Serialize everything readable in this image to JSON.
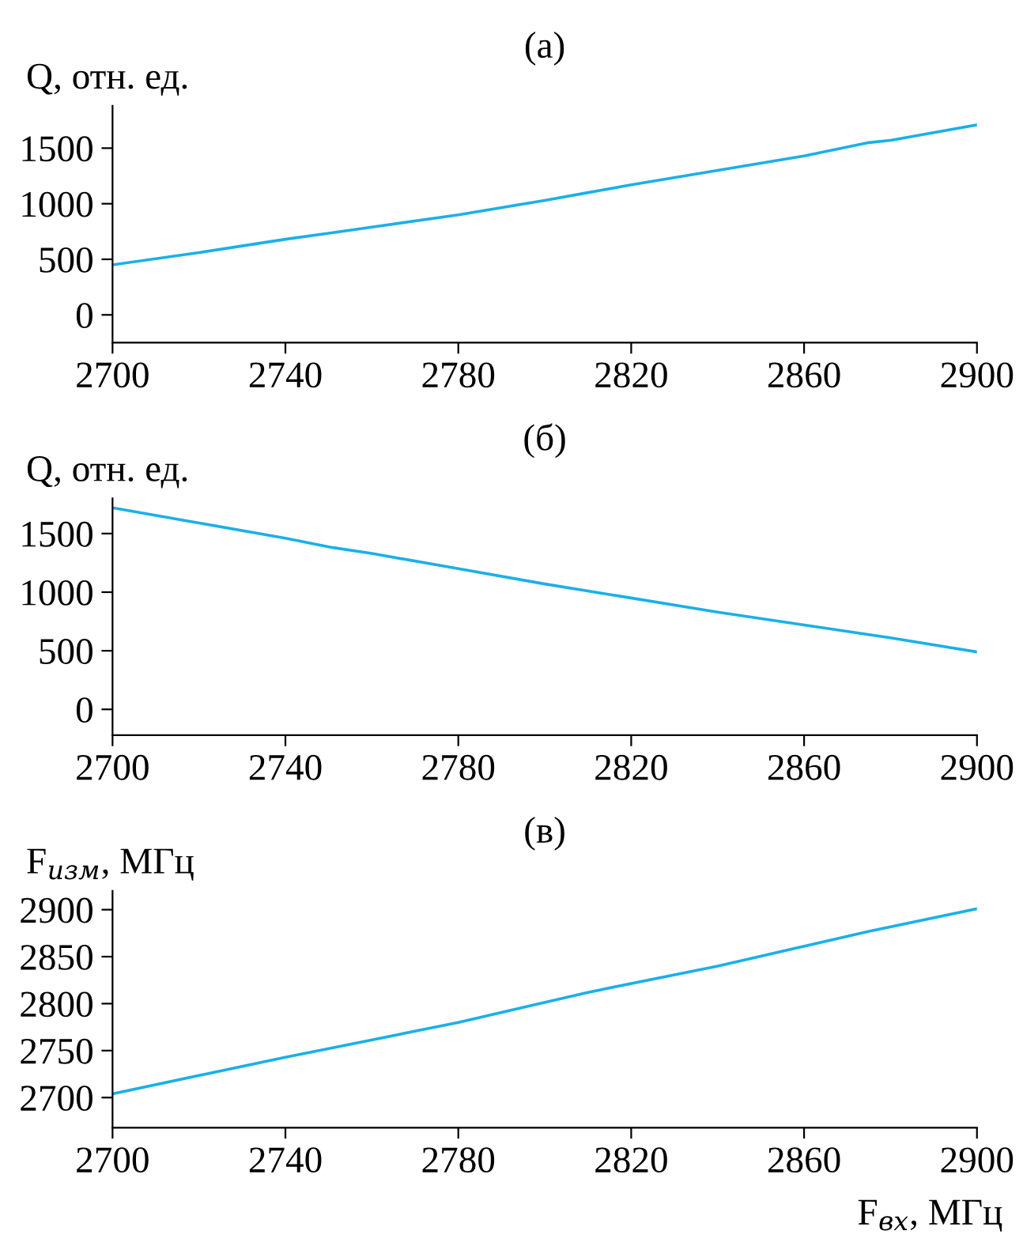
{
  "chart_data": [
    {
      "type": "line",
      "title": "(а)",
      "ylabel": "Q, отн. ед.",
      "x": [
        2700,
        2720,
        2740,
        2751,
        2760,
        2780,
        2800,
        2810,
        2820,
        2840,
        2860,
        2875,
        2880,
        2900
      ],
      "series": [
        {
          "color": "#1ab0e8",
          "values": [
            450,
            560,
            680,
            740,
            790,
            900,
            1030,
            1100,
            1170,
            1300,
            1430,
            1550,
            1570,
            1710
          ]
        }
      ],
      "xlim": [
        2700,
        2900
      ],
      "xticks": [
        2700,
        2740,
        2780,
        2820,
        2860,
        2900
      ],
      "ylim": [
        -250,
        1880
      ],
      "yticks": [
        0,
        500,
        1000,
        1500
      ],
      "grid": false,
      "legend": false
    },
    {
      "type": "line",
      "title": "(б)",
      "ylabel": "Q, отн. ед.",
      "x": [
        2700,
        2720,
        2740,
        2751,
        2760,
        2780,
        2800,
        2810,
        2820,
        2840,
        2860,
        2880,
        2900
      ],
      "series": [
        {
          "color": "#1ab0e8",
          "values": [
            1720,
            1590,
            1460,
            1380,
            1330,
            1200,
            1070,
            1010,
            950,
            830,
            720,
            610,
            490
          ]
        }
      ],
      "xlim": [
        2700,
        2900
      ],
      "xticks": [
        2700,
        2740,
        2780,
        2820,
        2860,
        2900
      ],
      "ylim": [
        -220,
        1800
      ],
      "yticks": [
        0,
        500,
        1000,
        1500
      ],
      "grid": false,
      "legend": false
    },
    {
      "type": "line",
      "title": "(в)",
      "ylabel": "F$_{изм}$, МГц",
      "xlabel": "F$_{вх}$, МГц",
      "x": [
        2700,
        2740,
        2751,
        2780,
        2810,
        2840,
        2875,
        2900
      ],
      "series": [
        {
          "color": "#1ab0e8",
          "values": [
            2704,
            2743,
            2753,
            2780,
            2812,
            2840,
            2877,
            2901
          ]
        }
      ],
      "xlim": [
        2700,
        2900
      ],
      "xticks": [
        2700,
        2740,
        2780,
        2820,
        2860,
        2900
      ],
      "ylim": [
        2668,
        2920
      ],
      "yticks": [
        2700,
        2750,
        2800,
        2850,
        2900
      ],
      "grid": false,
      "legend": false
    }
  ]
}
